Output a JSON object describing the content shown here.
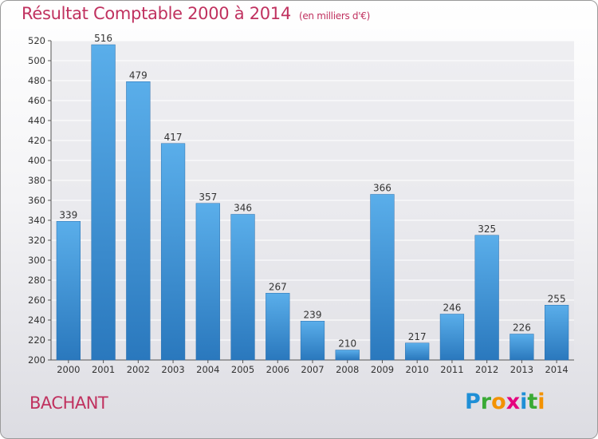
{
  "header": {
    "title": "Résultat Comptable 2000 à 2014",
    "unit": "(en milliers d'€)"
  },
  "footer": {
    "town": "BACHANT",
    "logo_letters": [
      {
        "char": "P",
        "color": "#1f8fd6"
      },
      {
        "char": "r",
        "color": "#3aaa35"
      },
      {
        "char": "o",
        "color": "#f39200"
      },
      {
        "char": "x",
        "color": "#e5007e"
      },
      {
        "char": "i",
        "color": "#1f8fd6"
      },
      {
        "char": "t",
        "color": "#3aaa35"
      },
      {
        "char": "i",
        "color": "#f39200"
      }
    ]
  },
  "chart_data": {
    "type": "bar",
    "categories": [
      "2000",
      "2001",
      "2002",
      "2003",
      "2004",
      "2005",
      "2006",
      "2007",
      "2008",
      "2009",
      "2010",
      "2011",
      "2012",
      "2013",
      "2014"
    ],
    "values": [
      339,
      516,
      479,
      417,
      357,
      346,
      267,
      239,
      210,
      366,
      217,
      246,
      325,
      226,
      255
    ],
    "ylim": [
      200,
      520
    ],
    "yticks": [
      200,
      220,
      240,
      260,
      280,
      300,
      320,
      340,
      360,
      380,
      400,
      420,
      440,
      460,
      480,
      500,
      520
    ],
    "grid": true,
    "bar_color_top": "#5aaeea",
    "bar_color_bottom": "#2a78bd",
    "grid_color": "#ffffff"
  }
}
